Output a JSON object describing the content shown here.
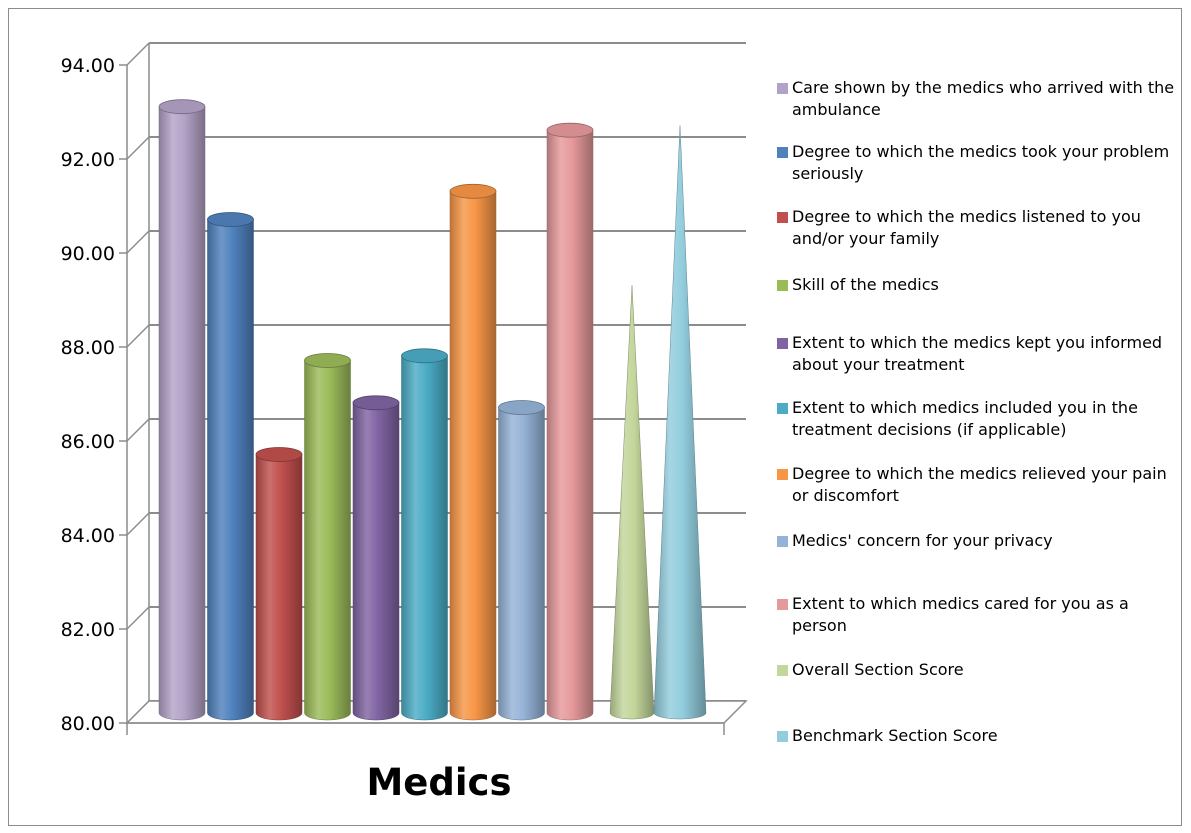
{
  "chart_data": {
    "type": "bar",
    "title": "",
    "xlabel": "",
    "ylabel": "",
    "categories": [
      "Medics"
    ],
    "ylim": [
      80,
      94
    ],
    "yticks": [
      "80.00",
      "82.00",
      "84.00",
      "86.00",
      "88.00",
      "90.00",
      "92.00",
      "94.00"
    ],
    "grid": true,
    "legend_position": "right",
    "series": [
      {
        "name": "Care shown by the medics who arrived with the ambulance",
        "values": [
          92.9
        ],
        "color": "#b3a2c7",
        "shape": "cylinder"
      },
      {
        "name": "Degree to which the medics took your problem seriously",
        "values": [
          90.5
        ],
        "color": "#4f81bd",
        "shape": "cylinder"
      },
      {
        "name": "Degree to which the medics listened to you and/or your family",
        "values": [
          85.5
        ],
        "color": "#c0504d",
        "shape": "cylinder"
      },
      {
        "name": "Skill of the medics",
        "values": [
          87.5
        ],
        "color": "#9bbb59",
        "shape": "cylinder"
      },
      {
        "name": "Extent to which the medics kept you informed about your treatment",
        "values": [
          86.6
        ],
        "color": "#8064a2",
        "shape": "cylinder"
      },
      {
        "name": "Extent to which medics included you in the treatment decisions  (if applicable)",
        "values": [
          87.6
        ],
        "color": "#4bacc6",
        "shape": "cylinder"
      },
      {
        "name": "Degree to which the medics relieved your pain or discomfort",
        "values": [
          91.1
        ],
        "color": "#f79646",
        "shape": "cylinder"
      },
      {
        "name": "Medics' concern for your privacy",
        "values": [
          86.5
        ],
        "color": "#95b3d7",
        "shape": "cylinder"
      },
      {
        "name": "Extent to which medics cared for you as a person",
        "values": [
          92.4
        ],
        "color": "#e6999b",
        "shape": "cylinder"
      },
      {
        "name": "Overall Section  Score",
        "values": [
          89.1
        ],
        "color": "#c3d69b",
        "shape": "cone"
      },
      {
        "name": "Benchmark Section  Score",
        "values": [
          92.5
        ],
        "color": "#93cddd",
        "shape": "cone"
      }
    ]
  }
}
